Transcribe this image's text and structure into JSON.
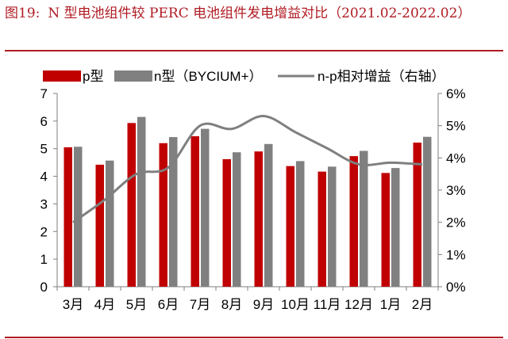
{
  "figure": {
    "number": "图19:",
    "title": "N 型电池组件较 PERC 电池组件发电增益对比（2021.02-2022.02）"
  },
  "chart_data": {
    "type": "bar",
    "categories": [
      "3月",
      "4月",
      "5月",
      "6月",
      "7月",
      "8月",
      "9月",
      "10月",
      "11月",
      "12月",
      "1月",
      "2月"
    ],
    "series": [
      {
        "name": "p型",
        "kind": "bar",
        "axis": "left",
        "color": "#c00000",
        "values": [
          5.05,
          4.42,
          5.93,
          5.2,
          5.45,
          4.62,
          4.9,
          4.37,
          4.17,
          4.73,
          4.12,
          5.22
        ]
      },
      {
        "name": "n型（BYCIUM+）",
        "kind": "bar",
        "axis": "left",
        "color": "#808080",
        "values": [
          5.07,
          4.57,
          6.15,
          5.42,
          5.72,
          4.87,
          5.17,
          4.55,
          4.35,
          4.92,
          4.3,
          5.43
        ]
      },
      {
        "name": "n-p相对增益（右轴）",
        "kind": "line",
        "axis": "right",
        "color": "#7f7f7f",
        "values": [
          0.02,
          0.027,
          0.035,
          0.037,
          0.05,
          0.049,
          0.053,
          0.048,
          0.043,
          0.038,
          0.0385,
          0.038
        ]
      }
    ],
    "ylim_left": [
      0,
      7
    ],
    "yticks_left": [
      "0",
      "1",
      "2",
      "3",
      "4",
      "5",
      "6",
      "7"
    ],
    "ylim_right": [
      0,
      0.06
    ],
    "yticks_right": [
      "0%",
      "1%",
      "2%",
      "3%",
      "4%",
      "5%",
      "6%"
    ],
    "grid": false,
    "legend_position": "top"
  }
}
